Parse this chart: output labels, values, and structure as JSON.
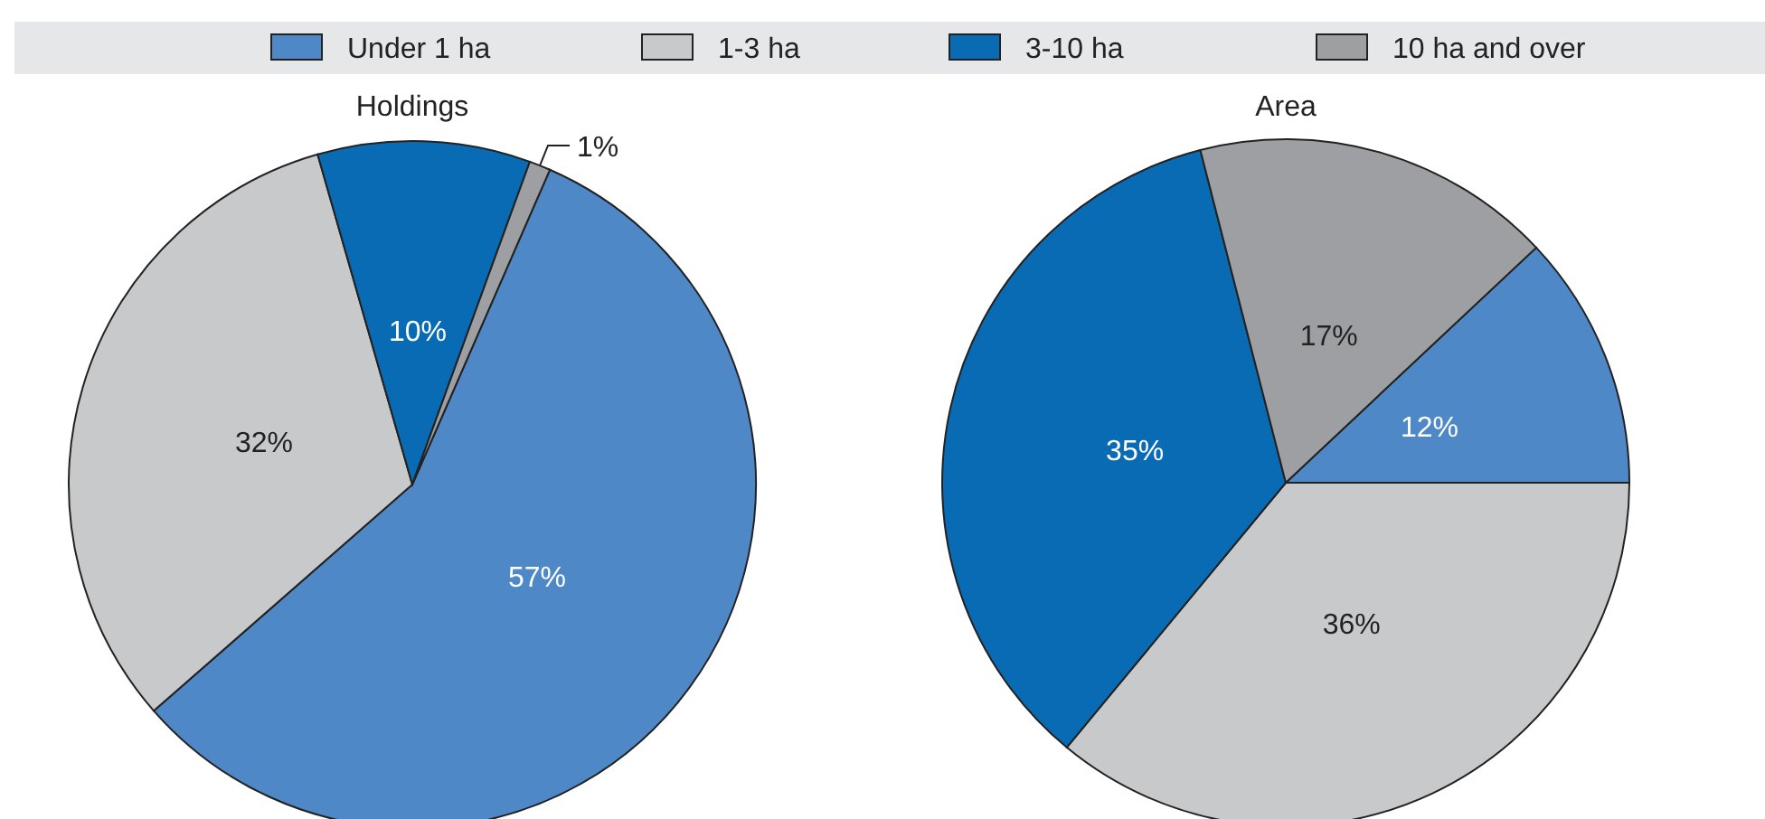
{
  "chart_data": [
    {
      "type": "pie",
      "title": "Holdings",
      "categories": [
        "Under 1 ha",
        "1-3 ha",
        "3-10 ha",
        "10 ha and over"
      ],
      "values": [
        57,
        32,
        10,
        1
      ],
      "value_labels": [
        "57%",
        "32%",
        "10%",
        "1%"
      ],
      "colors": [
        "#4f88c6",
        "#c8c9cb",
        "#0a6bb5",
        "#9d9fa2"
      ],
      "legend": "top"
    },
    {
      "type": "pie",
      "title": "Area",
      "categories": [
        null,
        null,
        null,
        null
      ],
      "values": [
        12,
        36,
        35,
        17
      ],
      "value_labels": [
        "12%",
        "36%",
        "35%",
        "17%"
      ],
      "colors": [
        "#4f88c6",
        "#c8c9cb",
        "#0a6bb5",
        "#9d9fa2"
      ]
    }
  ]
}
